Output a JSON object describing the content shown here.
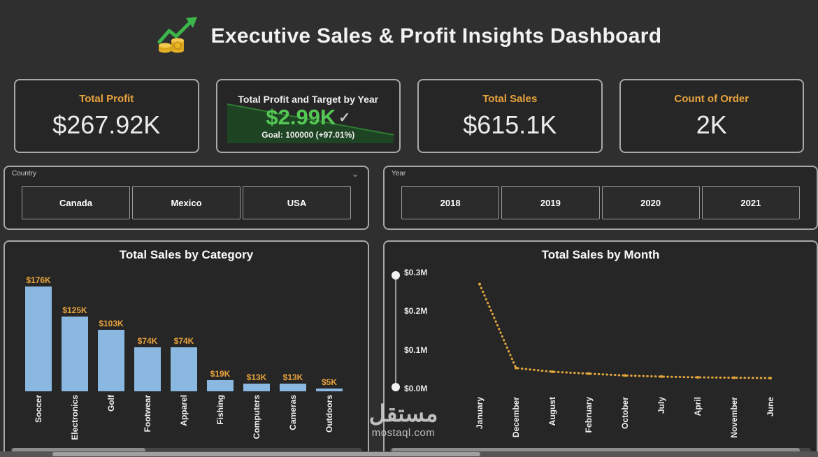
{
  "header": {
    "title": "Executive Sales & Profit Insights Dashboard"
  },
  "icons": {
    "chevron_down": "⌄",
    "check": "✓"
  },
  "kpis": [
    {
      "label": "Total Profit",
      "value": "$267.92K"
    },
    {
      "label": "Total Profit and Target by Year",
      "value": "$2.99K",
      "goal": "Goal: 100000 (+97.01%)"
    },
    {
      "label": "Total Sales",
      "value": "$615.1K"
    },
    {
      "label": "Count of Order",
      "value": "2K"
    }
  ],
  "slicers": {
    "country": {
      "label": "Country",
      "options": [
        "Canada",
        "Mexico",
        "USA"
      ]
    },
    "year": {
      "label": "Year",
      "options": [
        "2018",
        "2019",
        "2020",
        "2021"
      ]
    }
  },
  "chart_data": [
    {
      "type": "bar",
      "title": "Total Sales by Category",
      "categories": [
        "Soccer",
        "Electronics",
        "Golf",
        "Footwear",
        "Apparel",
        "Fishing",
        "Computers",
        "Cameras",
        "Outdoors"
      ],
      "values": [
        176,
        125,
        103,
        74,
        74,
        19,
        13,
        13,
        5
      ],
      "value_labels": [
        "$176K",
        "$125K",
        "$103K",
        "$74K",
        "$74K",
        "$19K",
        "$13K",
        "$13K",
        "$5K"
      ],
      "ylim": [
        0,
        176
      ],
      "unit": "K",
      "bar_color": "#8ab8e0",
      "label_color": "#e8a33d",
      "legend": "none",
      "grid": false
    },
    {
      "type": "line",
      "title": "Total Sales by Month",
      "categories": [
        "January",
        "December",
        "August",
        "February",
        "October",
        "July",
        "April",
        "November",
        "June"
      ],
      "values": [
        0.28,
        0.055,
        0.045,
        0.04,
        0.035,
        0.032,
        0.03,
        0.029,
        0.028
      ],
      "y_tick_labels": [
        "$0.0M",
        "$0.1M",
        "$0.2M",
        "$0.3M"
      ],
      "ylim": [
        0,
        0.3
      ],
      "unit": "M",
      "line_color": "#e2a63d",
      "line_style": "dotted",
      "legend": "none",
      "grid": false
    }
  ],
  "watermark": {
    "arabic": "مستقل",
    "latin": "mostaql.com"
  },
  "colors": {
    "accent_gold": "#e8a33d",
    "positive_green": "#54c754",
    "bar_blue": "#8ab8e0",
    "background": "#2f2f2f",
    "panel": "#262626"
  }
}
